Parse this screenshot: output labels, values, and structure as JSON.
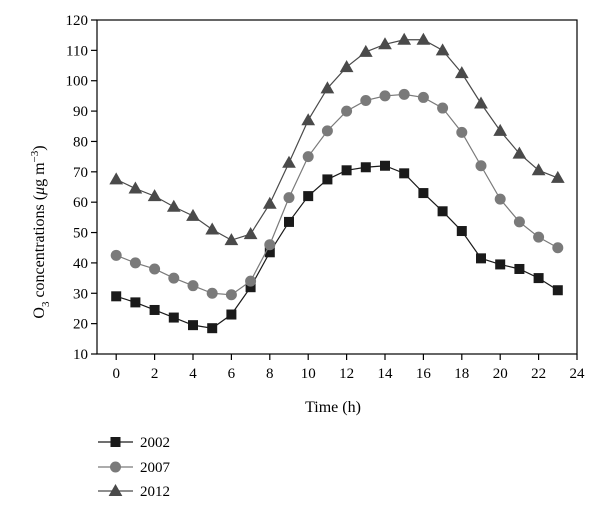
{
  "chart_data": {
    "type": "line",
    "xlabel": "Time (h)",
    "ylabel": {
      "prefix": "O",
      "sub": "3",
      "mid": " concentrations (",
      "mu": "μ",
      "unit": "g m",
      "sup": "−3",
      "suffix": ")"
    },
    "xlim": [
      -1,
      24
    ],
    "ylim": [
      10,
      120
    ],
    "xticks": [
      0,
      2,
      4,
      6,
      8,
      10,
      12,
      14,
      16,
      18,
      20,
      22,
      24
    ],
    "yticks": [
      10,
      20,
      30,
      40,
      50,
      60,
      70,
      80,
      90,
      100,
      110,
      120
    ],
    "x": [
      0,
      1,
      2,
      3,
      4,
      5,
      6,
      7,
      8,
      9,
      10,
      11,
      12,
      13,
      14,
      15,
      16,
      17,
      18,
      19,
      20,
      21,
      22,
      23
    ],
    "series": [
      {
        "name": "2002",
        "marker": "square",
        "color": "#1a1a1a",
        "values": [
          29,
          27,
          24.5,
          22,
          19.5,
          18.5,
          23,
          32,
          43.5,
          53.5,
          62,
          67.5,
          70.5,
          71.5,
          72,
          69.5,
          63,
          57,
          50.5,
          41.5,
          39.5,
          38,
          35,
          31
        ]
      },
      {
        "name": "2007",
        "marker": "circle",
        "color": "#7a7a7a",
        "values": [
          42.5,
          40,
          38,
          35,
          32.5,
          30,
          29.5,
          34,
          46,
          61.5,
          75,
          83.5,
          90,
          93.5,
          95,
          95.5,
          94.5,
          91,
          83,
          72,
          61,
          53.5,
          48.5,
          45
        ]
      },
      {
        "name": "2012",
        "marker": "triangle",
        "color": "#4a4a4a",
        "values": [
          67.5,
          64.5,
          62,
          58.5,
          55.5,
          51,
          47.5,
          49.5,
          59.5,
          73,
          87,
          97.5,
          104.5,
          109.5,
          112,
          113.5,
          113.5,
          110,
          102.5,
          92.5,
          83.5,
          76,
          70.5,
          68
        ]
      }
    ]
  }
}
